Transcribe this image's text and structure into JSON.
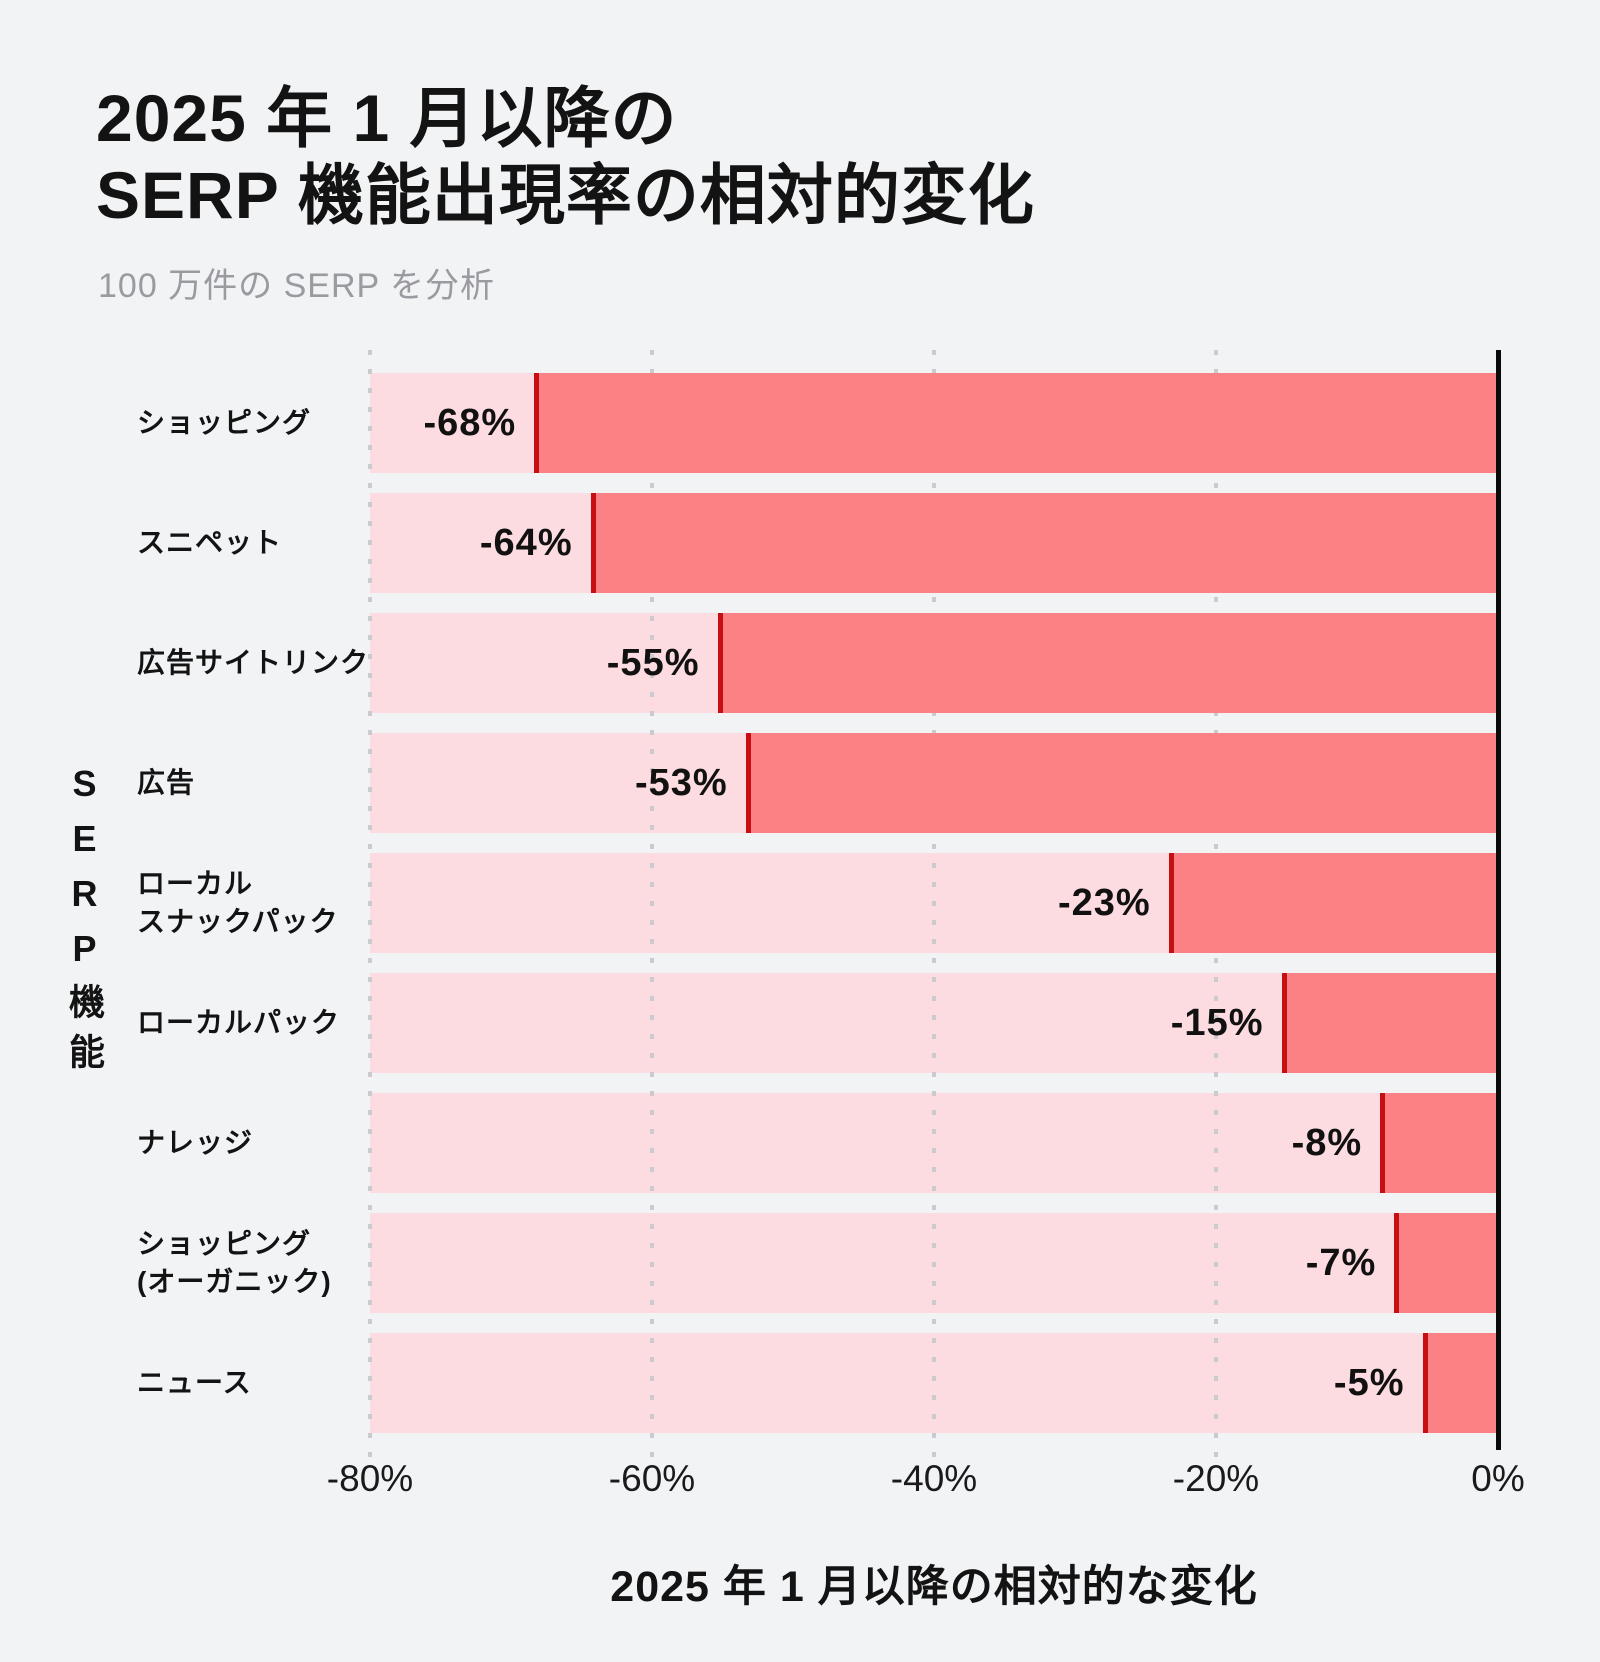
{
  "page": {
    "title": "2025 年 1 月以降の\nSERP 機能出現率の相対的変化",
    "subtitle": "100 万件の SERP を分析"
  },
  "chart_data": {
    "type": "bar",
    "orientation": "horizontal",
    "title": "2025 年 1 月以降の SERP 機能出現率の相対的変化",
    "subtitle": "100 万件の SERP を分析",
    "categories": [
      "ショッピング",
      "スニペット",
      "広告サイトリンク",
      "広告",
      "ローカル\nスナックパック",
      "ローカルパック",
      "ナレッジ",
      "ショッピング\n(オーガニック)",
      "ニュース"
    ],
    "values": [
      -68,
      -64,
      -55,
      -53,
      -23,
      -15,
      -8,
      -7,
      -5
    ],
    "value_labels": [
      "-68%",
      "-64%",
      "-55%",
      "-53%",
      "-23%",
      "-15%",
      "-8%",
      "-7%",
      "-5%"
    ],
    "xlabel": "2025 年 1 月以降の相対的な変化",
    "ylabel": "SERP機能",
    "xlim": [
      -80,
      0
    ],
    "x_ticks": [
      "-80%",
      "-60%",
      "-40%",
      "-20%",
      "0%"
    ],
    "x_tick_values": [
      -80,
      -60,
      -40,
      -20,
      0
    ],
    "grid": "dotted-vertical-gridlines",
    "legend": "none",
    "colors": {
      "background": "#f2f3f5",
      "bar_track_light": "#fcdce0",
      "bar_fill_salmon": "#fc8184",
      "marker_line_red": "#c60f13",
      "axis_line": "#0a0a0a",
      "gridline": "#cbcbcf",
      "title_text": "#131313",
      "subtitle_text": "#9a9aa0"
    }
  }
}
